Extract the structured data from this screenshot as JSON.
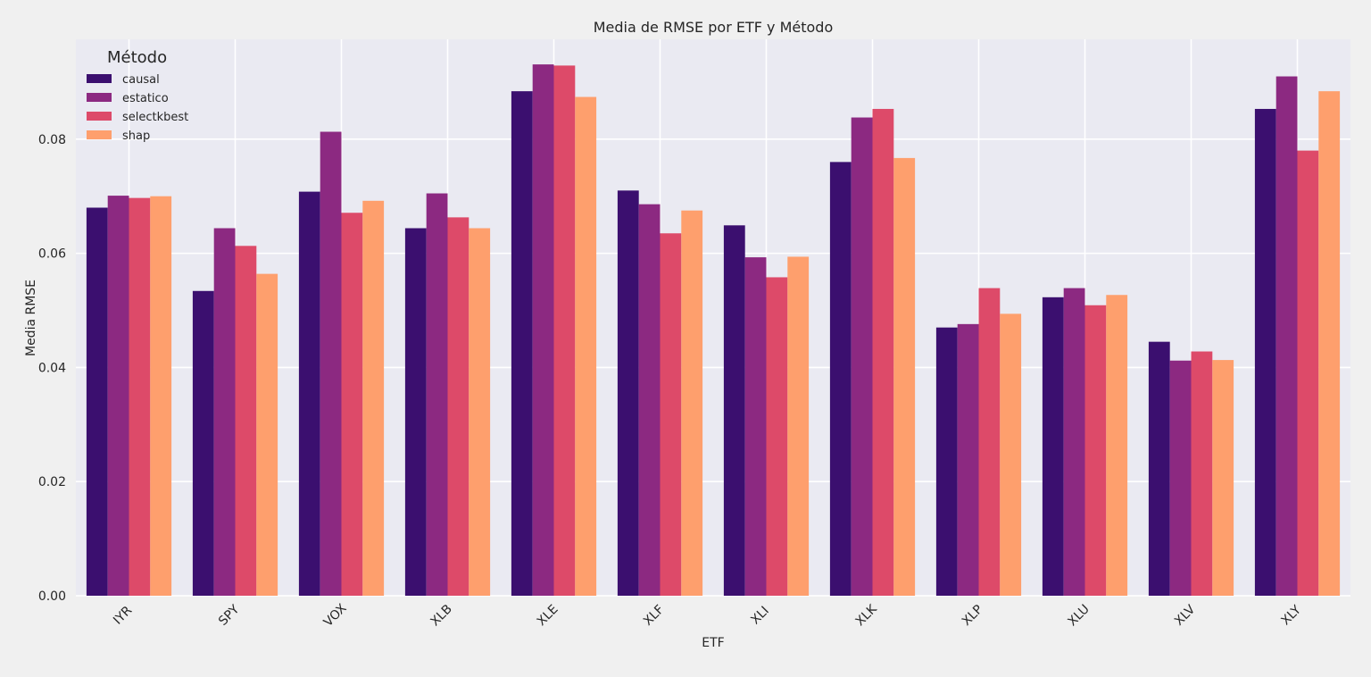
{
  "chart_data": {
    "type": "bar",
    "title": "Media de RMSE por ETF y Método",
    "xlabel": "ETF",
    "ylabel": "Media RMSE",
    "ylim": [
      0,
      0.0975
    ],
    "yticks": [
      "0.00",
      "0.02",
      "0.04",
      "0.06",
      "0.08"
    ],
    "grid": true,
    "legend": {
      "title": "Método",
      "placement": "top-left"
    },
    "categories": [
      "IYR",
      "SPY",
      "VOX",
      "XLB",
      "XLE",
      "XLF",
      "XLI",
      "XLK",
      "XLP",
      "XLU",
      "XLV",
      "XLY"
    ],
    "series": [
      {
        "name": "causal",
        "color": "#3b0f6f",
        "values": [
          0.068,
          0.0534,
          0.0708,
          0.0644,
          0.0884,
          0.071,
          0.0649,
          0.076,
          0.047,
          0.0523,
          0.0445,
          0.0853
        ]
      },
      {
        "name": "estatico",
        "color": "#8c2981",
        "values": [
          0.0701,
          0.0644,
          0.0813,
          0.0705,
          0.0931,
          0.0686,
          0.0593,
          0.0838,
          0.0476,
          0.0539,
          0.0412,
          0.091
        ]
      },
      {
        "name": "selectkbest",
        "color": "#dd4a69",
        "values": [
          0.0697,
          0.0613,
          0.0671,
          0.0663,
          0.0929,
          0.0635,
          0.0558,
          0.0853,
          0.0539,
          0.0509,
          0.0428,
          0.078
        ]
      },
      {
        "name": "shap",
        "color": "#fe9f6d",
        "values": [
          0.07,
          0.0564,
          0.0692,
          0.0644,
          0.0874,
          0.0675,
          0.0594,
          0.0767,
          0.0494,
          0.0527,
          0.0413,
          0.0884
        ]
      }
    ]
  },
  "colors": {
    "plot_background": "#eaeaf2",
    "figure_background": "#f0f0f0",
    "grid": "#ffffff"
  }
}
